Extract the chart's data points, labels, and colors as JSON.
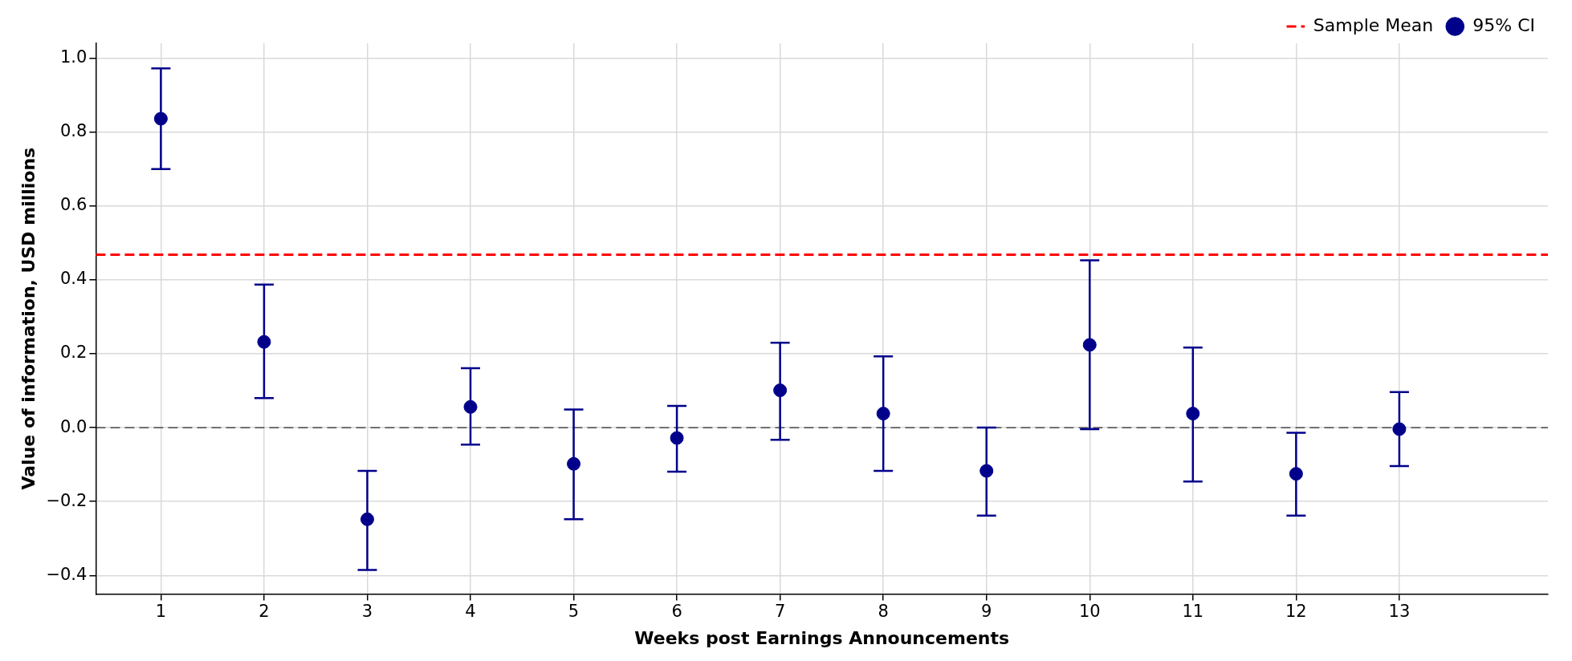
{
  "chart_data": {
    "type": "scatter",
    "xlabel": "Weeks post Earnings Announcements",
    "ylabel": "Value of information, USD millions",
    "x": [
      1,
      2,
      3,
      4,
      5,
      6,
      7,
      8,
      9,
      10,
      11,
      12,
      13
    ],
    "series": [
      {
        "name": "95% CI",
        "color": "#00008b",
        "values": [
          0.836,
          0.232,
          -0.248,
          0.056,
          -0.098,
          -0.028,
          0.101,
          0.038,
          -0.117,
          0.224,
          0.038,
          -0.125,
          -0.004
        ],
        "errors": [
          [
            0.7,
            0.972
          ],
          [
            0.08,
            0.387
          ],
          [
            -0.385,
            -0.117
          ],
          [
            -0.046,
            0.161
          ],
          [
            -0.248,
            0.049
          ],
          [
            -0.119,
            0.059
          ],
          [
            -0.033,
            0.23
          ],
          [
            -0.117,
            0.193
          ],
          [
            -0.238,
            0
          ],
          [
            -0.004,
            0.453
          ],
          [
            -0.146,
            0.217
          ],
          [
            -0.238,
            -0.014
          ],
          [
            -0.104,
            0.096
          ]
        ]
      }
    ],
    "ref_lines": [
      {
        "axis": "y",
        "value": 0.468,
        "label": "Sample Mean",
        "color": "#ff0000",
        "line_style": "dashed"
      },
      {
        "axis": "y",
        "value": 0,
        "color": "#000000",
        "line_style": "dashed"
      }
    ],
    "xlim": [
      0.37,
      14.44
    ],
    "xticks": [
      1,
      2,
      3,
      4,
      5,
      6,
      7,
      8,
      9,
      10,
      11,
      12,
      13
    ],
    "ylim": [
      -0.45,
      1.04
    ],
    "yticks": [
      {
        "value": -0.4,
        "label": "−0.4"
      },
      {
        "value": -0.2,
        "label": "−0.2"
      },
      {
        "value": 0,
        "label": "0.0"
      },
      {
        "value": 0.2,
        "label": "0.2"
      },
      {
        "value": 0.4,
        "label": "0.4"
      },
      {
        "value": 0.6,
        "label": "0.6"
      },
      {
        "value": 0.8,
        "label": "0.8"
      },
      {
        "value": 1,
        "label": "1.0"
      }
    ],
    "grid": true,
    "legend": "top right",
    "marker": "circle"
  }
}
